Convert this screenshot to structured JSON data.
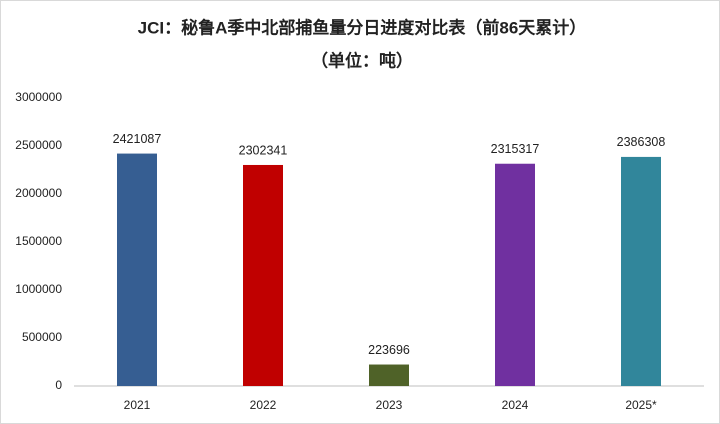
{
  "chart_data": {
    "type": "bar",
    "title": "JCI：秘鲁A季中北部捕鱼量分日进度对比表（前86天累计）",
    "subtitle": "（单位：吨）",
    "categories": [
      "2021",
      "2022",
      "2023",
      "2024",
      "2025*"
    ],
    "values": [
      2421087,
      2302341,
      223696,
      2315317,
      2386308
    ],
    "colors": [
      "#365e92",
      "#c00000",
      "#4f6228",
      "#7030a0",
      "#31869b"
    ],
    "ylim": [
      0,
      3000000
    ],
    "yticks": [
      0,
      500000,
      1000000,
      1500000,
      2000000,
      2500000,
      3000000
    ],
    "grid": false
  }
}
